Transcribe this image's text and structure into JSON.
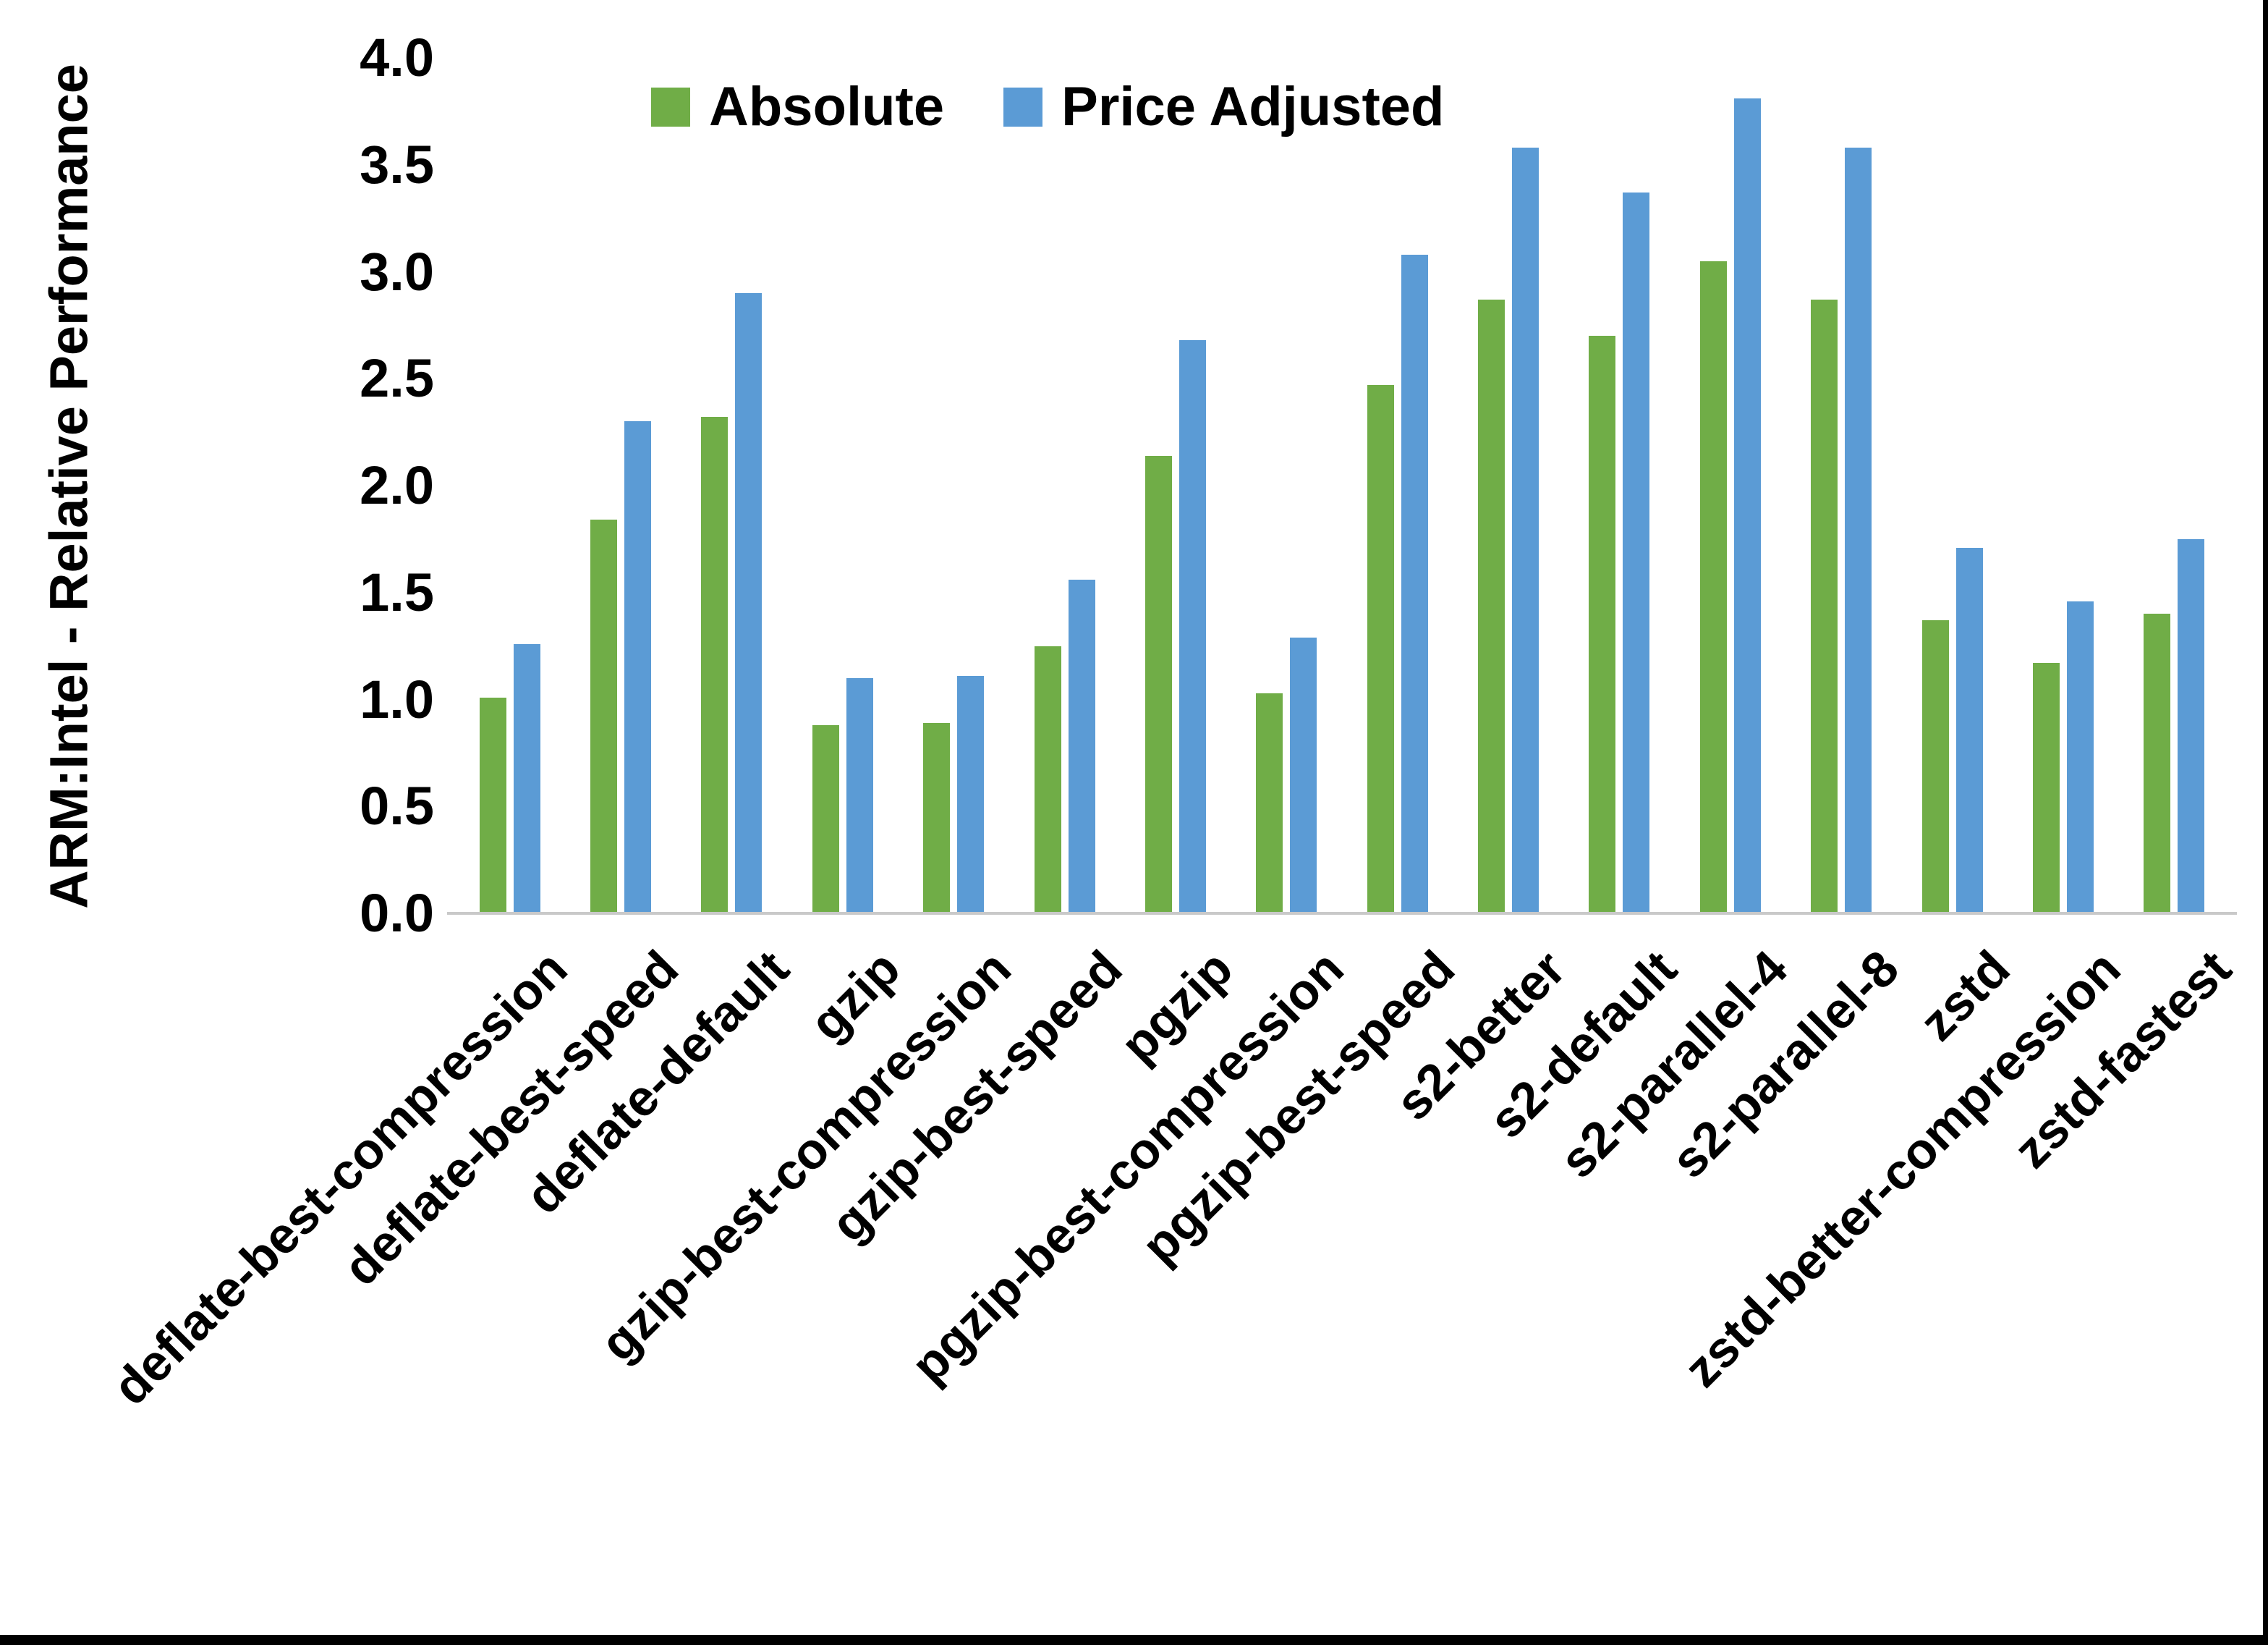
{
  "figure": {
    "background": "#FFFFFF",
    "edge_border_color": "#000000"
  },
  "chart_data": {
    "type": "bar",
    "title": "",
    "xlabel": "",
    "ylabel": "ARM:Intel - Relative Performance",
    "ylim": [
      0.0,
      4.0
    ],
    "ytick_step": 0.5,
    "ytick_labels": [
      "0.0",
      "0.5",
      "1.0",
      "1.5",
      "2.0",
      "2.5",
      "3.0",
      "3.5",
      "4.0"
    ],
    "grid": false,
    "legend_position": "top-center",
    "axis_line_color": "#C9C9C9",
    "categories": [
      "deflate-best-compression",
      "deflate-best-speed",
      "deflate-default",
      "gzip",
      "gzip-best-compression",
      "gzip-best-speed",
      "pgzip",
      "pgzip-best-compression",
      "pgzip-best-speed",
      "s2-better",
      "s2-default",
      "s2-parallel-4",
      "s2-parallel-8",
      "zstd",
      "zstd-better-compression",
      "zstd-fastest"
    ],
    "series": [
      {
        "name": "Absolute",
        "color": "#70AD47",
        "values": [
          1.01,
          1.84,
          2.32,
          0.88,
          0.89,
          1.25,
          2.14,
          1.03,
          2.47,
          2.87,
          2.7,
          3.05,
          2.87,
          1.37,
          1.17,
          1.4
        ]
      },
      {
        "name": "Price Adjusted",
        "color": "#5B9BD5",
        "values": [
          1.26,
          2.3,
          2.9,
          1.1,
          1.11,
          1.56,
          2.68,
          1.29,
          3.08,
          3.58,
          3.37,
          3.81,
          3.58,
          1.71,
          1.46,
          1.75
        ]
      }
    ]
  }
}
